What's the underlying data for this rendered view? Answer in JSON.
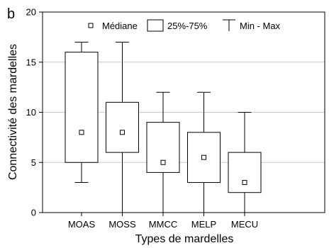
{
  "chart_data": {
    "type": "boxplot",
    "panel_label": "b",
    "xlabel": "Types de mardelles",
    "ylabel": "Connectivité des mardelles",
    "ylim": [
      0,
      20
    ],
    "yticks": [
      0,
      5,
      10,
      15,
      20
    ],
    "grid": "horizontal",
    "legend": {
      "placement": "top",
      "entries": [
        {
          "symbol": "median-point",
          "label": "Médiane"
        },
        {
          "symbol": "box",
          "label": "25%-75%"
        },
        {
          "symbol": "whisker",
          "label": "Min - Max"
        }
      ]
    },
    "categories": [
      "MOAS",
      "MOSS",
      "MMCC",
      "MELP",
      "MECU"
    ],
    "boxes": [
      {
        "category": "MOAS",
        "min": 3,
        "q1": 5,
        "median": 8,
        "q3": 16,
        "max": 17
      },
      {
        "category": "MOSS",
        "min": 0,
        "q1": 6,
        "median": 8,
        "q3": 11,
        "max": 17
      },
      {
        "category": "MMCC",
        "min": 0,
        "q1": 4,
        "median": 5,
        "q3": 9,
        "max": 12
      },
      {
        "category": "MELP",
        "min": 0,
        "q1": 3,
        "median": 5.5,
        "q3": 8,
        "max": 12
      },
      {
        "category": "MECU",
        "min": 0,
        "q1": 2,
        "median": 3,
        "q3": 6,
        "max": 10
      }
    ]
  }
}
